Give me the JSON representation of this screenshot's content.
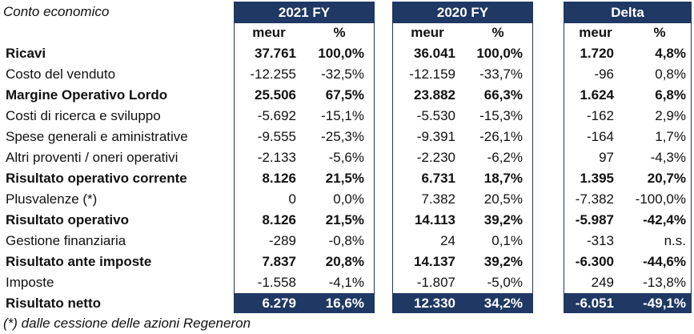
{
  "title": "Conto economico",
  "footnote": "(*) dalle cessione delle azioni Regeneron",
  "groups": [
    {
      "label": "2021 FY",
      "col_meur": "meur",
      "col_pct": "%"
    },
    {
      "label": "2020 FY",
      "col_meur": "meur",
      "col_pct": "%"
    },
    {
      "label": "Delta",
      "col_meur": "meur",
      "col_pct": "%"
    }
  ],
  "rows": [
    {
      "label": "Ricavi",
      "bold": true,
      "values": [
        "37.761",
        "100,0%",
        "36.041",
        "100,0%",
        "1.720",
        "4,8%"
      ]
    },
    {
      "label": "Costo del venduto",
      "bold": false,
      "values": [
        "-12.255",
        "-32,5%",
        "-12.159",
        "-33,7%",
        "-96",
        "0,8%"
      ]
    },
    {
      "label": "Margine Operativo Lordo",
      "bold": true,
      "values": [
        "25.506",
        "67,5%",
        "23.882",
        "66,3%",
        "1.624",
        "6,8%"
      ]
    },
    {
      "label": "Costi di ricerca e sviluppo",
      "bold": false,
      "values": [
        "-5.692",
        "-15,1%",
        "-5.530",
        "-15,3%",
        "-162",
        "2,9%"
      ]
    },
    {
      "label": "Spese generali e aministrative",
      "bold": false,
      "values": [
        "-9.555",
        "-25,3%",
        "-9.391",
        "-26,1%",
        "-164",
        "1,7%"
      ]
    },
    {
      "label": "Altri proventi / oneri operativi",
      "bold": false,
      "values": [
        "-2.133",
        "-5,6%",
        "-2.230",
        "-6,2%",
        "97",
        "-4,3%"
      ]
    },
    {
      "label": "Risultato operativo corrente",
      "bold": true,
      "values": [
        "8.126",
        "21,5%",
        "6.731",
        "18,7%",
        "1.395",
        "20,7%"
      ]
    },
    {
      "label": "Plusvalenze (*)",
      "bold": false,
      "values": [
        "0",
        "0,0%",
        "7.382",
        "20,5%",
        "-7.382",
        "-100,0%"
      ]
    },
    {
      "label": "Risultato operativo",
      "bold": true,
      "values": [
        "8.126",
        "21,5%",
        "14.113",
        "39,2%",
        "-5.987",
        "-42,4%"
      ]
    },
    {
      "label": "Gestione finanziaria",
      "bold": false,
      "values": [
        "-289",
        "-0,8%",
        "24",
        "0,1%",
        "-313",
        "n.s."
      ]
    },
    {
      "label": "Risultato ante imposte",
      "bold": true,
      "values": [
        "7.837",
        "20,8%",
        "14.137",
        "39,2%",
        "-6.300",
        "-44,6%"
      ]
    },
    {
      "label": "Imposte",
      "bold": false,
      "values": [
        "-1.558",
        "-4,1%",
        "-1.807",
        "-5,0%",
        "249",
        "-13,8%"
      ]
    },
    {
      "label": "Risultato netto",
      "bold": true,
      "total": true,
      "values": [
        "6.279",
        "16,6%",
        "12.330",
        "34,2%",
        "-6.051",
        "-49,1%"
      ]
    }
  ]
}
